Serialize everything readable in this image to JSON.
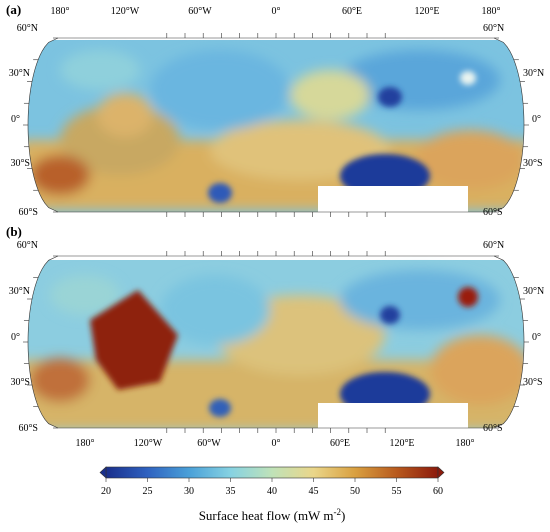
{
  "panels": [
    {
      "id": "a",
      "label": "(a)",
      "lon_labels": [
        "180°",
        "120°W",
        "60°W",
        "0°",
        "60°E",
        "120°E",
        "180°"
      ],
      "lat_labels_left": [
        "60°N",
        "30°N",
        "0°",
        "30°S",
        "60°S"
      ],
      "lat_labels_right": [
        "60°N",
        "30°N",
        "0°",
        "30°S",
        "60°S"
      ]
    },
    {
      "id": "b",
      "label": "(b)",
      "lon_labels": [
        "180°",
        "120°W",
        "60°W",
        "0°",
        "60°E",
        "120°E",
        "180°"
      ],
      "lat_labels_left": [
        "60°N",
        "30°N",
        "0°",
        "30°S",
        "60°S"
      ],
      "lat_labels_right": [
        "60°N",
        "30°N",
        "0°",
        "30°S",
        "60°S"
      ]
    }
  ],
  "colorbar": {
    "ticks": [
      "20",
      "25",
      "30",
      "35",
      "40",
      "45",
      "50",
      "55",
      "60"
    ],
    "title": "Surface heat flow (mW m",
    "title_sup": "-2",
    "title_end": ")",
    "colors": [
      "#1a2f8c",
      "#2f62c0",
      "#4aa0d8",
      "#86d2e2",
      "#bfe2b8",
      "#ead68a",
      "#d9a040",
      "#b85a1e",
      "#8c1a0c"
    ]
  }
}
